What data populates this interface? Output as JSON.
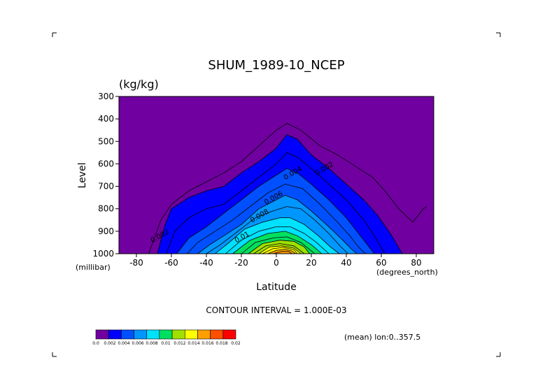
{
  "chart_data": {
    "type": "contour",
    "title": "SHUM_1989-10_NCEP",
    "units_label": "(kg/kg)",
    "xlabel": "Latitude",
    "x_unit_label": "(degrees_north)",
    "ylabel": "Level",
    "y_unit_label": "(millibar)",
    "xlim": [
      -90,
      90
    ],
    "ylim": [
      300,
      1000
    ],
    "x_ticks": [
      -80,
      -60,
      -40,
      -20,
      0,
      20,
      40,
      60,
      80
    ],
    "y_ticks": [
      300,
      400,
      500,
      600,
      700,
      800,
      900,
      1000
    ],
    "y_reversed": true,
    "grid": false,
    "contour_interval_text": "CONTOUR INTERVAL = 1.000E-03",
    "mean_text": "(mean) lon:0..357.5",
    "contour_labels": [
      {
        "text": "0.002",
        "lat": 28,
        "level": 630
      },
      {
        "text": "0.004",
        "lat": 10,
        "level": 650
      },
      {
        "text": "0.006",
        "lat": -1,
        "level": 760
      },
      {
        "text": "0.008",
        "lat": -9,
        "level": 840
      },
      {
        "text": "0.01",
        "lat": -19,
        "level": 935
      },
      {
        "text": "0.002",
        "lat": -66,
        "level": 930
      }
    ],
    "colorbar": {
      "levels": [
        "0.0",
        "0.002",
        "0.004",
        "0.006",
        "0.008",
        "0.01",
        "0.012",
        "0.014",
        "0.016",
        "0.018",
        "0.02"
      ],
      "colors": [
        "#7000a0",
        "#0000ff",
        "#0050ff",
        "#0096ff",
        "#00e0ff",
        "#00e060",
        "#a0e000",
        "#ffff00",
        "#ffa000",
        "#ff5000",
        "#ff0000"
      ]
    },
    "profiles": [
      {
        "threshold": 0.001,
        "line_only": true,
        "lat": [
          -73,
          -66,
          -60,
          -50,
          -40,
          -30,
          -20,
          -10,
          0,
          6,
          14,
          25,
          35,
          45,
          55,
          62,
          70,
          78,
          84,
          86
        ],
        "level": [
          1000,
          850,
          780,
          720,
          680,
          640,
          590,
          520,
          450,
          420,
          450,
          520,
          560,
          610,
          660,
          720,
          800,
          860,
          800,
          790
        ]
      },
      {
        "threshold": 0.002,
        "lat": [
          -68,
          -64,
          -60,
          -50,
          -40,
          -30,
          -20,
          -10,
          0,
          6,
          12,
          20,
          30,
          40,
          50,
          58,
          66,
          72
        ],
        "level": [
          1000,
          880,
          800,
          750,
          720,
          700,
          640,
          590,
          530,
          470,
          490,
          560,
          620,
          690,
          760,
          830,
          920,
          1000
        ]
      },
      {
        "threshold": 0.003,
        "lat": [
          -63,
          -58,
          -50,
          -40,
          -30,
          -20,
          -10,
          0,
          6,
          12,
          20,
          30,
          40,
          50,
          56,
          62
        ],
        "level": [
          1000,
          900,
          840,
          800,
          780,
          720,
          660,
          600,
          550,
          570,
          620,
          690,
          760,
          850,
          920,
          1000
        ]
      },
      {
        "threshold": 0.004,
        "lat": [
          -57,
          -50,
          -40,
          -30,
          -20,
          -10,
          0,
          6,
          12,
          20,
          30,
          40,
          46,
          52,
          56
        ],
        "level": [
          1000,
          930,
          880,
          820,
          760,
          700,
          650,
          620,
          640,
          690,
          760,
          840,
          900,
          960,
          1000
        ]
      },
      {
        "threshold": 0.005,
        "lat": [
          -51,
          -45,
          -35,
          -25,
          -15,
          -5,
          5,
          15,
          25,
          35,
          42,
          47,
          51
        ],
        "level": [
          1000,
          950,
          900,
          850,
          790,
          730,
          690,
          710,
          780,
          860,
          920,
          970,
          1000
        ]
      },
      {
        "threshold": 0.006,
        "lat": [
          -45,
          -38,
          -30,
          -20,
          -10,
          0,
          5,
          12,
          20,
          30,
          38,
          43,
          46
        ],
        "level": [
          1000,
          960,
          920,
          870,
          800,
          760,
          740,
          760,
          810,
          880,
          940,
          980,
          1000
        ]
      },
      {
        "threshold": 0.007,
        "lat": [
          -40,
          -32,
          -22,
          -12,
          -2,
          6,
          14,
          22,
          30,
          37,
          41
        ],
        "level": [
          1000,
          960,
          900,
          840,
          810,
          790,
          800,
          850,
          910,
          970,
          1000
        ]
      },
      {
        "threshold": 0.008,
        "lat": [
          -35,
          -27,
          -18,
          -8,
          2,
          8,
          16,
          24,
          31,
          36
        ],
        "level": [
          1000,
          950,
          890,
          860,
          840,
          840,
          870,
          920,
          970,
          1000
        ]
      },
      {
        "threshold": 0.009,
        "lat": [
          -29,
          -20,
          -10,
          0,
          8,
          16,
          23,
          30
        ],
        "level": [
          1000,
          940,
          900,
          880,
          880,
          910,
          950,
          1000
        ]
      },
      {
        "threshold": 0.01,
        "lat": [
          -25,
          -15,
          -5,
          5,
          12,
          20,
          26
        ],
        "level": [
          1000,
          940,
          910,
          900,
          920,
          960,
          1000
        ]
      },
      {
        "threshold": 0.011,
        "lat": [
          -20,
          -12,
          -2,
          6,
          14,
          22
        ],
        "level": [
          1000,
          950,
          930,
          925,
          950,
          1000
        ]
      },
      {
        "threshold": 0.012,
        "lat": [
          -16,
          -8,
          2,
          10,
          16,
          19
        ],
        "level": [
          1000,
          955,
          940,
          945,
          970,
          1000
        ]
      },
      {
        "threshold": 0.013,
        "lat": [
          -13,
          -6,
          2,
          10,
          16
        ],
        "level": [
          1000,
          965,
          955,
          965,
          1000
        ]
      },
      {
        "threshold": 0.014,
        "lat": [
          -10,
          -4,
          3,
          10,
          14
        ],
        "level": [
          1000,
          970,
          965,
          975,
          1000
        ]
      },
      {
        "threshold": 0.015,
        "lat": [
          -8,
          -2,
          4,
          10,
          12
        ],
        "level": [
          1000,
          978,
          972,
          982,
          1000
        ]
      },
      {
        "threshold": 0.016,
        "lat": [
          -5,
          0,
          5,
          9,
          11
        ],
        "level": [
          1000,
          985,
          980,
          988,
          1000
        ]
      },
      {
        "threshold": 0.017,
        "lat": [
          -2,
          3,
          7,
          9
        ],
        "level": [
          1000,
          990,
          990,
          1000
        ]
      }
    ]
  }
}
